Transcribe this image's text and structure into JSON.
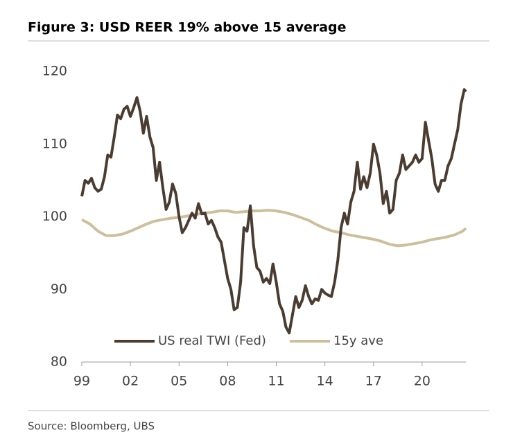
{
  "chart_data": {
    "type": "line",
    "title": "Figure 3: USD REER 19% above 15 average",
    "source": "Source: Bloomberg, UBS",
    "xlim": [
      1999,
      2022.7
    ],
    "xticks": [
      {
        "value": 1999,
        "label": "99"
      },
      {
        "value": 2002,
        "label": "02"
      },
      {
        "value": 2005,
        "label": "05"
      },
      {
        "value": 2008,
        "label": "08"
      },
      {
        "value": 2011,
        "label": "11"
      },
      {
        "value": 2014,
        "label": "14"
      },
      {
        "value": 2017,
        "label": "17"
      },
      {
        "value": 2020,
        "label": "20"
      }
    ],
    "ylim": [
      80,
      120
    ],
    "yticks": [
      80,
      90,
      100,
      110,
      120
    ],
    "grid": false,
    "legend": "bottom",
    "series": [
      {
        "name": "US real TWI (Fed)",
        "color": "#4a3c31",
        "x": [
          1999.0,
          1999.2,
          1999.4,
          1999.6,
          1999.8,
          2000.0,
          2000.2,
          2000.4,
          2000.6,
          2000.8,
          2001.0,
          2001.2,
          2001.4,
          2001.6,
          2001.8,
          2002.0,
          2002.2,
          2002.4,
          2002.6,
          2002.8,
          2003.0,
          2003.2,
          2003.4,
          2003.6,
          2003.8,
          2004.0,
          2004.2,
          2004.4,
          2004.6,
          2004.8,
          2005.0,
          2005.2,
          2005.4,
          2005.6,
          2005.8,
          2006.0,
          2006.2,
          2006.4,
          2006.6,
          2006.8,
          2007.0,
          2007.2,
          2007.4,
          2007.6,
          2007.8,
          2008.0,
          2008.2,
          2008.4,
          2008.6,
          2008.8,
          2009.0,
          2009.2,
          2009.4,
          2009.6,
          2009.8,
          2010.0,
          2010.2,
          2010.4,
          2010.6,
          2010.8,
          2011.0,
          2011.2,
          2011.4,
          2011.6,
          2011.8,
          2012.0,
          2012.2,
          2012.4,
          2012.6,
          2012.8,
          2013.0,
          2013.2,
          2013.4,
          2013.6,
          2013.8,
          2014.0,
          2014.2,
          2014.4,
          2014.6,
          2014.8,
          2015.0,
          2015.2,
          2015.4,
          2015.6,
          2015.8,
          2016.0,
          2016.2,
          2016.4,
          2016.6,
          2016.8,
          2017.0,
          2017.2,
          2017.4,
          2017.6,
          2017.8,
          2018.0,
          2018.2,
          2018.4,
          2018.6,
          2018.8,
          2019.0,
          2019.2,
          2019.4,
          2019.6,
          2019.8,
          2020.0,
          2020.2,
          2020.4,
          2020.6,
          2020.8,
          2021.0,
          2021.2,
          2021.4,
          2021.6,
          2021.8,
          2022.0,
          2022.2,
          2022.4,
          2022.6,
          2022.7
        ],
        "values": [
          102.8,
          105.0,
          104.6,
          105.3,
          104.0,
          103.5,
          103.8,
          105.5,
          108.5,
          108.2,
          111.0,
          114.0,
          113.5,
          114.8,
          115.2,
          113.8,
          115.0,
          116.4,
          114.5,
          111.5,
          113.8,
          111.0,
          109.5,
          105.0,
          107.5,
          104.0,
          101.0,
          102.0,
          104.5,
          103.2,
          100.0,
          97.8,
          98.5,
          99.5,
          100.5,
          99.8,
          101.8,
          100.4,
          100.5,
          99.0,
          99.5,
          98.5,
          97.2,
          96.5,
          94.0,
          91.5,
          90.0,
          87.2,
          87.5,
          91.0,
          98.5,
          98.0,
          101.5,
          96.0,
          93.0,
          92.5,
          91.0,
          91.5,
          90.8,
          93.5,
          91.0,
          88.0,
          87.0,
          84.8,
          84.0,
          86.5,
          89.0,
          87.5,
          88.5,
          90.5,
          89.0,
          88.0,
          88.7,
          88.5,
          90.0,
          89.5,
          89.2,
          89.0,
          91.0,
          94.0,
          98.5,
          100.5,
          99.0,
          102.0,
          103.5,
          107.5,
          103.8,
          105.5,
          104.0,
          106.0,
          110.0,
          108.5,
          106.0,
          101.8,
          103.5,
          100.5,
          101.0,
          105.0,
          106.0,
          108.5,
          106.5,
          107.0,
          107.5,
          108.5,
          107.5,
          108.0,
          113.0,
          110.5,
          108.0,
          104.5,
          103.5,
          105.0,
          105.0,
          107.0,
          108.0,
          110.0,
          112.0,
          115.5,
          117.5,
          117.2
        ]
      },
      {
        "name": "15y ave",
        "color": "#cdbf9c",
        "x": [
          1999.0,
          1999.5,
          2000.0,
          2000.5,
          2001.0,
          2001.5,
          2002.0,
          2002.5,
          2003.0,
          2003.5,
          2004.0,
          2004.5,
          2005.0,
          2005.5,
          2006.0,
          2006.5,
          2007.0,
          2007.5,
          2008.0,
          2008.5,
          2009.0,
          2009.5,
          2010.0,
          2010.5,
          2011.0,
          2011.5,
          2012.0,
          2012.5,
          2013.0,
          2013.5,
          2014.0,
          2014.5,
          2015.0,
          2015.5,
          2016.0,
          2016.5,
          2017.0,
          2017.5,
          2018.0,
          2018.5,
          2019.0,
          2019.5,
          2020.0,
          2020.5,
          2021.0,
          2021.5,
          2022.0,
          2022.5,
          2022.7
        ],
        "values": [
          99.6,
          99.0,
          98.0,
          97.4,
          97.4,
          97.6,
          98.0,
          98.5,
          99.0,
          99.4,
          99.6,
          99.8,
          99.9,
          100.1,
          100.3,
          100.5,
          100.6,
          100.8,
          100.8,
          100.6,
          100.7,
          100.8,
          100.8,
          100.9,
          100.8,
          100.6,
          100.3,
          99.9,
          99.5,
          98.9,
          98.4,
          98.0,
          97.8,
          97.5,
          97.3,
          97.1,
          96.9,
          96.6,
          96.2,
          96.0,
          96.1,
          96.3,
          96.5,
          96.8,
          97.0,
          97.2,
          97.5,
          98.0,
          98.4
        ]
      }
    ]
  }
}
